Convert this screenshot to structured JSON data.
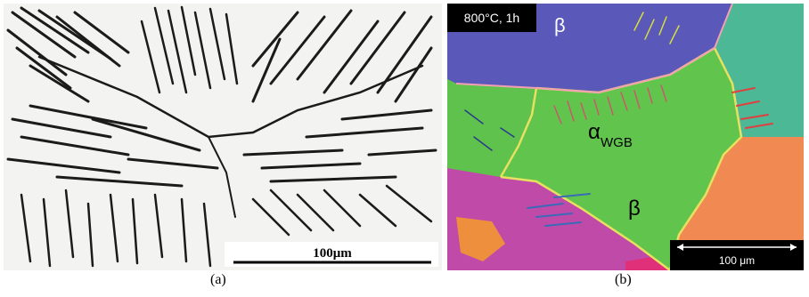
{
  "figure": {
    "panel_a": {
      "caption": "(a)",
      "scale_bar_label": "100μm",
      "colors": {
        "background": "#f2f2f2",
        "lath": "#1a1a1a"
      }
    },
    "panel_b": {
      "caption": "(b)",
      "condition_label": "800°C, 1h",
      "scale_bar_label": "100 μm",
      "phase_labels": {
        "beta_top": "β",
        "alpha_main": "α",
        "alpha_subscript": "WGB",
        "beta_center": "β"
      },
      "colors": {
        "blue_grain": "#5a58b8",
        "green_grain": "#5ec24c",
        "orange_grain": "#f08a52",
        "magenta_grain": "#c04aa8",
        "teal_grain": "#4cb896",
        "boundary": "#e8e060"
      }
    }
  }
}
